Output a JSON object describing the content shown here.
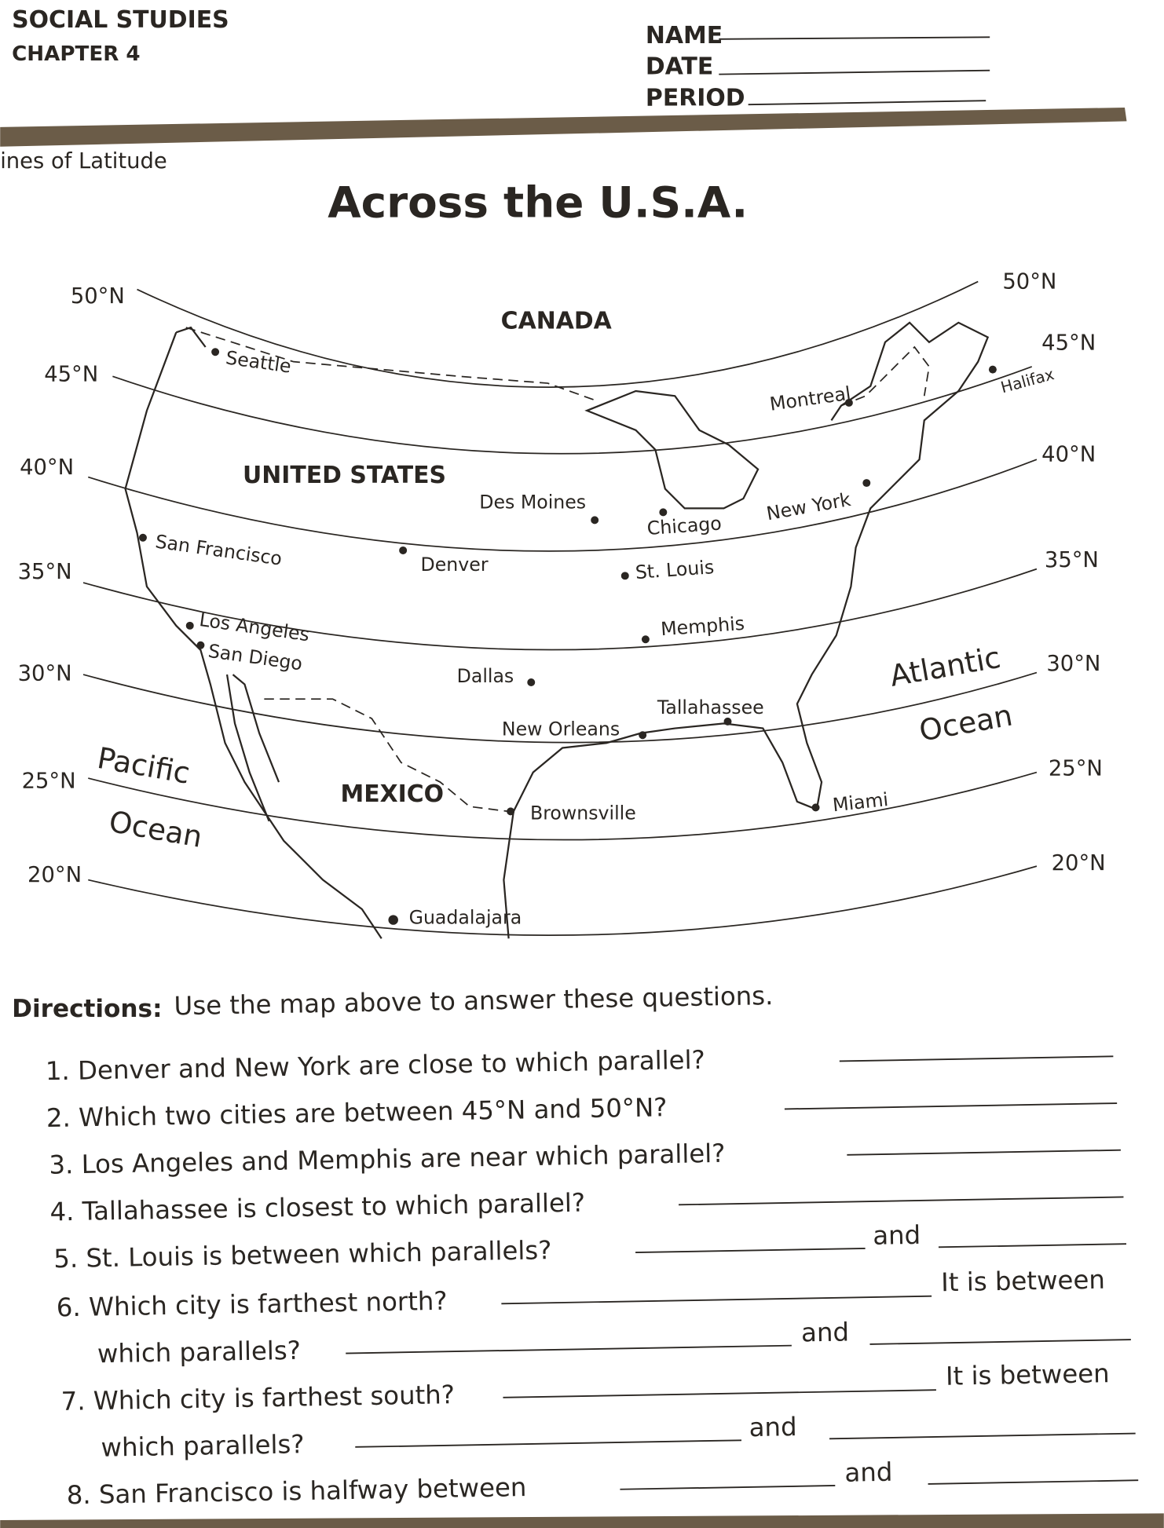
{
  "header": {
    "subject": "SOCIAL STUDIES",
    "chapter": "CHAPTER 4",
    "name_label": "NAME",
    "date_label": "DATE",
    "period_label": "PERIOD",
    "section": "ines of Latitude"
  },
  "title": "Across the U.S.A.",
  "map": {
    "latitudes_left": [
      "50°N",
      "45°N",
      "40°N",
      "35°N",
      "30°N",
      "25°N",
      "20°N"
    ],
    "latitudes_right": [
      "50°N",
      "45°N",
      "40°N",
      "35°N",
      "30°N",
      "25°N",
      "20°N"
    ],
    "regions": {
      "canada": "CANADA",
      "united_states": "UNITED STATES",
      "mexico": "MEXICO"
    },
    "oceans": {
      "pacific_1": "Pacific",
      "pacific_2": "Ocean",
      "atlantic_1": "Atlantic",
      "atlantic_2": "Ocean"
    },
    "cities": [
      "Seattle",
      "Montreal",
      "Halifax",
      "Des Moines",
      "Chicago",
      "New York",
      "San Francisco",
      "Denver",
      "St. Louis",
      "Los Angeles",
      "San Diego",
      "Memphis",
      "Dallas",
      "Tallahassee",
      "New Orleans",
      "Brownsville",
      "Miami",
      "Guadalajara"
    ]
  },
  "directions": {
    "label": "Directions:",
    "text": "Use the map above to answer these questions."
  },
  "questions": [
    "1. Denver and New York are close to which parallel?",
    "2. Which two cities are between 45°N and 50°N?",
    "3. Los Angeles and Memphis are near which parallel?",
    "4. Tallahassee is closest to which parallel?",
    "5. St. Louis is between which parallels?",
    "6. Which city is farthest north?",
    "which parallels?",
    "7. Which city is farthest south?",
    "which parallels?",
    "8. San Francisco is halfway between"
  ],
  "connectors": {
    "and": "and",
    "between": "It is between"
  }
}
